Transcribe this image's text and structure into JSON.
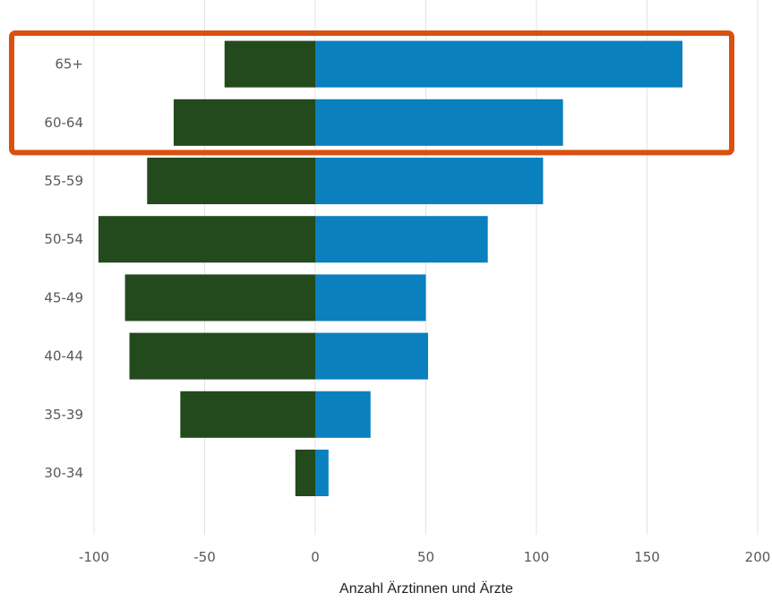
{
  "chart_data": {
    "type": "bar",
    "orientation": "horizontal",
    "stacking": "diverging",
    "categories": [
      "65+",
      "60-64",
      "55-59",
      "50-54",
      "45-49",
      "40-44",
      "35-39",
      "30-34"
    ],
    "series": [
      {
        "color": "#234a1d",
        "values": [
          -41,
          -64,
          -76,
          -98,
          -86,
          -84,
          -61,
          -9
        ]
      },
      {
        "color": "#0a80bf",
        "values": [
          166,
          112,
          103,
          78,
          50,
          51,
          25,
          6
        ]
      }
    ],
    "xlabel": "Anzahl Ärztinnen und Ärzte",
    "xlim": [
      -100,
      200
    ],
    "xticks": [
      -100,
      -50,
      0,
      50,
      100,
      150,
      200
    ],
    "xtick_labels": [
      "-100",
      "-50",
      "0",
      "50",
      "100",
      "150",
      "200"
    ],
    "grid": "vertical",
    "highlight": {
      "categories": [
        "65+",
        "60-64"
      ],
      "color": "#d9500f"
    }
  }
}
